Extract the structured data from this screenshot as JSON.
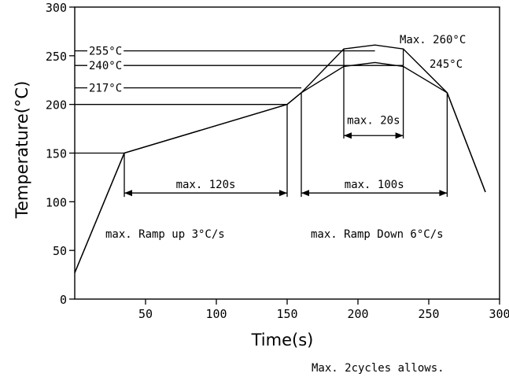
{
  "chart_data": {
    "type": "line",
    "xlabel": "Time(s)",
    "ylabel": "Temperature(°C)",
    "xlim": [
      0,
      300
    ],
    "ylim": [
      0,
      300
    ],
    "x_ticks": [
      "50",
      "100",
      "150",
      "200",
      "250",
      "300"
    ],
    "y_ticks": [
      "0",
      "50",
      "100",
      "150",
      "200",
      "250",
      "300"
    ],
    "grid": false,
    "series": [
      {
        "role": "upper-limit",
        "points": [
          [
            0,
            27
          ],
          [
            35,
            150
          ],
          [
            150,
            200
          ],
          [
            160,
            212
          ],
          [
            190,
            257
          ],
          [
            212,
            261
          ],
          [
            232,
            257
          ],
          [
            263,
            212
          ],
          [
            290,
            110
          ]
        ]
      },
      {
        "role": "lower-limit",
        "points": [
          [
            0,
            27
          ],
          [
            35,
            150
          ],
          [
            150,
            200
          ],
          [
            160,
            212
          ],
          [
            190,
            239
          ],
          [
            212,
            243
          ],
          [
            232,
            239
          ],
          [
            263,
            212
          ],
          [
            290,
            110
          ]
        ]
      }
    ],
    "reference_lines": [
      {
        "label": "255°C",
        "y": 255
      },
      {
        "label": "240°C",
        "y": 240
      },
      {
        "label": "217°C",
        "y": 217
      }
    ],
    "peak_labels": {
      "max": "Max. 260°C",
      "min": "245°C"
    },
    "intervals": [
      {
        "label": "max. 120s",
        "x": [
          35,
          150
        ]
      },
      {
        "label": "max. 100s",
        "x": [
          160,
          263
        ]
      },
      {
        "label": "max. 20s",
        "x": [
          190,
          232
        ]
      }
    ],
    "annotations": {
      "ramp_up": "max. Ramp up 3°C/s",
      "ramp_down": "max. Ramp Down 6°C/s"
    }
  },
  "footnote": "Max. 2cycles allows."
}
